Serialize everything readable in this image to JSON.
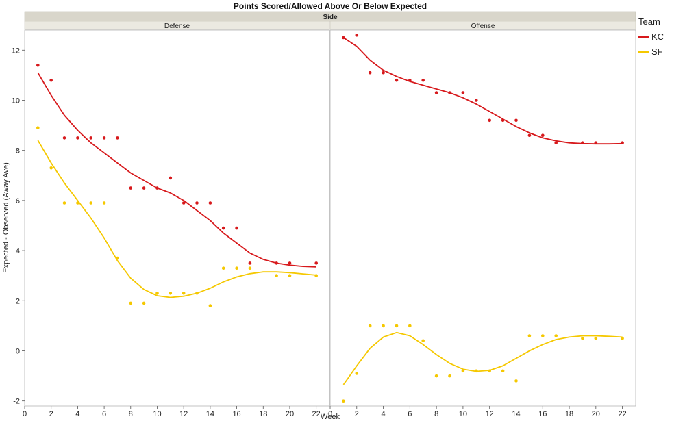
{
  "chart_data": {
    "type": "scatter",
    "title": "Points Scored/Allowed Above Or Below Expected",
    "facet_header": "Side",
    "xlabel": "Week",
    "ylabel": "Expected - Observed (Away Ave)",
    "xlim": [
      0,
      23
    ],
    "ylim": [
      -2.2,
      12.8
    ],
    "x_ticks": [
      0,
      2,
      4,
      6,
      8,
      10,
      12,
      14,
      16,
      18,
      20,
      22
    ],
    "y_ticks": [
      -2,
      0,
      2,
      4,
      6,
      8,
      10,
      12
    ],
    "grid": false,
    "legend": {
      "title": "Team",
      "position": "right"
    },
    "colors": {
      "KC": "#d7191c",
      "SF": "#f5c800"
    },
    "panels": [
      {
        "name": "Defense",
        "series": [
          {
            "name": "KC",
            "points": [
              [
                1,
                11.4
              ],
              [
                2,
                10.8
              ],
              [
                3,
                8.5
              ],
              [
                4,
                8.5
              ],
              [
                5,
                8.5
              ],
              [
                6,
                8.5
              ],
              [
                7,
                8.5
              ],
              [
                8,
                6.5
              ],
              [
                9,
                6.5
              ],
              [
                10,
                6.5
              ],
              [
                11,
                6.9
              ],
              [
                12,
                5.9
              ],
              [
                13,
                5.9
              ],
              [
                14,
                5.9
              ],
              [
                15,
                4.9
              ],
              [
                16,
                4.9
              ],
              [
                17,
                3.5
              ],
              [
                19,
                3.5
              ],
              [
                20,
                3.5
              ],
              [
                22,
                3.5
              ]
            ],
            "trend": [
              [
                1,
                11.1
              ],
              [
                2,
                10.2
              ],
              [
                3,
                9.4
              ],
              [
                4,
                8.8
              ],
              [
                5,
                8.3
              ],
              [
                6,
                7.9
              ],
              [
                7,
                7.5
              ],
              [
                8,
                7.1
              ],
              [
                9,
                6.8
              ],
              [
                10,
                6.5
              ],
              [
                11,
                6.3
              ],
              [
                12,
                6.0
              ],
              [
                13,
                5.6
              ],
              [
                14,
                5.2
              ],
              [
                15,
                4.7
              ],
              [
                16,
                4.3
              ],
              [
                17,
                3.9
              ],
              [
                18,
                3.65
              ],
              [
                19,
                3.5
              ],
              [
                20,
                3.42
              ],
              [
                21,
                3.37
              ],
              [
                22,
                3.35
              ]
            ]
          },
          {
            "name": "SF",
            "points": [
              [
                1,
                8.9
              ],
              [
                2,
                7.3
              ],
              [
                3,
                5.9
              ],
              [
                4,
                5.9
              ],
              [
                5,
                5.9
              ],
              [
                6,
                5.9
              ],
              [
                7,
                3.7
              ],
              [
                8,
                1.9
              ],
              [
                9,
                1.9
              ],
              [
                10,
                2.3
              ],
              [
                11,
                2.3
              ],
              [
                12,
                2.3
              ],
              [
                13,
                2.3
              ],
              [
                14,
                1.8
              ],
              [
                15,
                3.3
              ],
              [
                16,
                3.3
              ],
              [
                17,
                3.3
              ],
              [
                19,
                3.0
              ],
              [
                20,
                3.0
              ],
              [
                22,
                3.0
              ]
            ],
            "trend": [
              [
                1,
                8.4
              ],
              [
                2,
                7.5
              ],
              [
                3,
                6.7
              ],
              [
                4,
                6.0
              ],
              [
                5,
                5.3
              ],
              [
                6,
                4.5
              ],
              [
                7,
                3.6
              ],
              [
                8,
                2.9
              ],
              [
                9,
                2.45
              ],
              [
                10,
                2.2
              ],
              [
                11,
                2.13
              ],
              [
                12,
                2.18
              ],
              [
                13,
                2.3
              ],
              [
                14,
                2.5
              ],
              [
                15,
                2.75
              ],
              [
                16,
                2.95
              ],
              [
                17,
                3.08
              ],
              [
                18,
                3.15
              ],
              [
                19,
                3.15
              ],
              [
                20,
                3.12
              ],
              [
                21,
                3.07
              ],
              [
                22,
                3.02
              ]
            ]
          }
        ]
      },
      {
        "name": "Offense",
        "series": [
          {
            "name": "KC",
            "points": [
              [
                1,
                12.5
              ],
              [
                2,
                12.6
              ],
              [
                3,
                11.1
              ],
              [
                4,
                11.1
              ],
              [
                5,
                10.8
              ],
              [
                6,
                10.8
              ],
              [
                7,
                10.8
              ],
              [
                8,
                10.3
              ],
              [
                9,
                10.3
              ],
              [
                10,
                10.3
              ],
              [
                11,
                10.0
              ],
              [
                12,
                9.2
              ],
              [
                13,
                9.2
              ],
              [
                14,
                9.2
              ],
              [
                15,
                8.6
              ],
              [
                16,
                8.6
              ],
              [
                17,
                8.3
              ],
              [
                19,
                8.3
              ],
              [
                20,
                8.3
              ],
              [
                22,
                8.3
              ]
            ],
            "trend": [
              [
                1,
                12.5
              ],
              [
                2,
                12.15
              ],
              [
                3,
                11.6
              ],
              [
                4,
                11.2
              ],
              [
                5,
                10.95
              ],
              [
                6,
                10.75
              ],
              [
                7,
                10.6
              ],
              [
                8,
                10.45
              ],
              [
                9,
                10.3
              ],
              [
                10,
                10.1
              ],
              [
                11,
                9.85
              ],
              [
                12,
                9.55
              ],
              [
                13,
                9.25
              ],
              [
                14,
                8.95
              ],
              [
                15,
                8.7
              ],
              [
                16,
                8.5
              ],
              [
                17,
                8.38
              ],
              [
                18,
                8.3
              ],
              [
                19,
                8.27
              ],
              [
                20,
                8.26
              ],
              [
                21,
                8.26
              ],
              [
                22,
                8.27
              ]
            ]
          },
          {
            "name": "SF",
            "points": [
              [
                1,
                -2.0
              ],
              [
                2,
                -0.9
              ],
              [
                3,
                1.0
              ],
              [
                4,
                1.0
              ],
              [
                5,
                1.0
              ],
              [
                6,
                1.0
              ],
              [
                7,
                0.4
              ],
              [
                8,
                -1.0
              ],
              [
                9,
                -1.0
              ],
              [
                10,
                -0.8
              ],
              [
                11,
                -0.8
              ],
              [
                12,
                -0.8
              ],
              [
                13,
                -0.8
              ],
              [
                14,
                -1.2
              ],
              [
                15,
                0.6
              ],
              [
                16,
                0.6
              ],
              [
                17,
                0.6
              ],
              [
                19,
                0.5
              ],
              [
                20,
                0.5
              ],
              [
                22,
                0.5
              ]
            ],
            "trend": [
              [
                1,
                -1.35
              ],
              [
                2,
                -0.6
              ],
              [
                3,
                0.1
              ],
              [
                4,
                0.55
              ],
              [
                5,
                0.73
              ],
              [
                6,
                0.6
              ],
              [
                7,
                0.25
              ],
              [
                8,
                -0.15
              ],
              [
                9,
                -0.5
              ],
              [
                10,
                -0.73
              ],
              [
                11,
                -0.82
              ],
              [
                12,
                -0.78
              ],
              [
                13,
                -0.6
              ],
              [
                14,
                -0.3
              ],
              [
                15,
                0.0
              ],
              [
                16,
                0.25
              ],
              [
                17,
                0.45
              ],
              [
                18,
                0.55
              ],
              [
                19,
                0.6
              ],
              [
                20,
                0.6
              ],
              [
                21,
                0.58
              ],
              [
                22,
                0.55
              ]
            ]
          }
        ]
      }
    ]
  }
}
